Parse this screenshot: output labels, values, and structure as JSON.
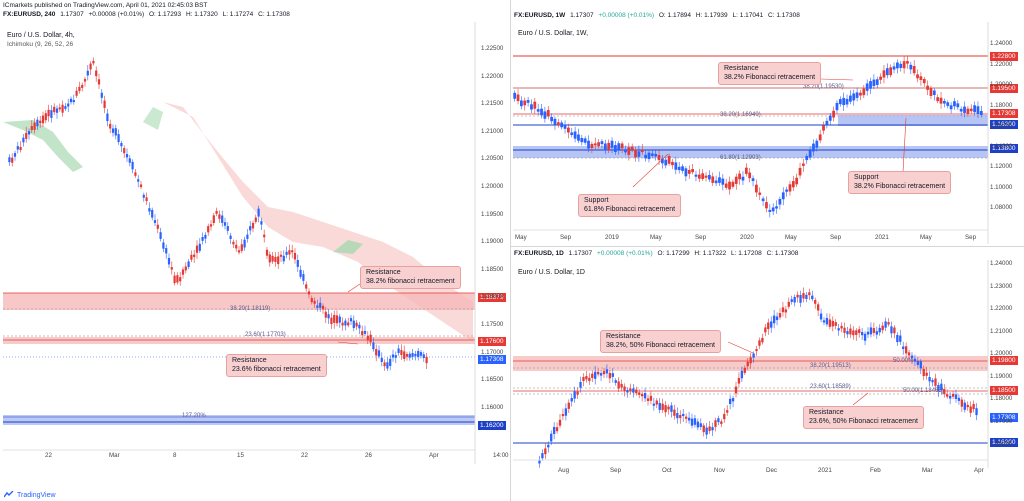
{
  "header": {
    "line1": "ICmarkets published on TradingView.com, April 01, 2021 02:45:03 BST",
    "symbol": "FX:EURUSD, 240",
    "quote": [
      "1.17307",
      "+0.00008 (+0.01%)",
      "O: 1.17293",
      "H: 1.17320",
      "L: 1.17274",
      "C: 1.17308"
    ]
  },
  "left": {
    "title": "Euro / U.S. Dollar, 4h,",
    "indicator": "Ichimoku (9, 26, 52, 26",
    "yticks": [
      "1.22500",
      "1.22000",
      "1.21500",
      "1.21000",
      "1.20500",
      "1.20000",
      "1.19500",
      "1.19000",
      "1.18500",
      "1.18000",
      "1.17500",
      "1.17000",
      "1.16500",
      "1.16000"
    ],
    "xticks": [
      "22",
      "Mar",
      "8",
      "15",
      "22",
      "26",
      "Apr",
      "14:00"
    ],
    "levels": {
      "fib382": "38.20(1.18119)",
      "fib236": "23.60(1.17703)",
      "fib1272": "127.20%"
    },
    "annotations": {
      "res382": [
        "Resistance",
        "38.2% fibonacci retracement"
      ],
      "res236": [
        "Resistance",
        "23.6% fibonacci retracement"
      ]
    },
    "price_tags": {
      "r1": "1.18379",
      "r2": "1.17600",
      "cur": "1.17308",
      "s1": "1.16200"
    }
  },
  "weekly": {
    "header": "FX:EURUSD, 1W",
    "quote": [
      "1.17307",
      "+0.00008 (+0.01%)",
      "O: 1.17894",
      "H: 1.17939",
      "L: 1.17041",
      "C: 1.17308"
    ],
    "title": "Euro / U.S. Dollar, 1W,",
    "yticks": [
      "1.24000",
      "1.22000",
      "1.20000",
      "1.18000",
      "1.16000",
      "1.14000",
      "1.12000",
      "1.10000",
      "1.08000"
    ],
    "xticks": [
      "May",
      "Sep",
      "2019",
      "May",
      "Sep",
      "2020",
      "May",
      "Sep",
      "2021",
      "May",
      "Sep"
    ],
    "levels": {
      "fib382a": "38.20(1.19530)",
      "fib382b": "38.20(1.16949)",
      "fib618": "61.80(1.12903)"
    },
    "annotations": {
      "res": [
        "Resistance",
        "38.2% Fibonacci retracement"
      ],
      "sup618": [
        "Support",
        "61.8% Fibonacci retracement"
      ],
      "sup382": [
        "Support",
        "38.2% Fibonacci retracement"
      ]
    },
    "price_tags": {
      "r1": "1.22800",
      "r2": "1.19500",
      "cur": "1.17308",
      "s1": "1.16200",
      "s2": "1.13800"
    }
  },
  "daily": {
    "header": "FX:EURUSD, 1D",
    "quote": [
      "1.17307",
      "+0.00008 (+0.01%)",
      "O: 1.17299",
      "H: 1.17322",
      "L: 1.17208",
      "C: 1.17308"
    ],
    "title": "Euro / U.S. Dollar, 1D",
    "yticks": [
      "1.24000",
      "1.23000",
      "1.22000",
      "1.21000",
      "1.20000",
      "1.19000",
      "1.18000",
      "1.17000",
      "1.16000"
    ],
    "xticks": [
      "Aug",
      "Sep",
      "Oct",
      "Nov",
      "Dec",
      "2021",
      "Feb",
      "Mar",
      "Apr"
    ],
    "levels": {
      "fib382": "38.20(1.19513)",
      "p50a": "50.00%",
      "fib236": "23.60(1.18589)",
      "p50b": "50.00(1.18465)"
    },
    "annotations": {
      "res1": [
        "Resistance",
        "38.2%, 50% Fibonacci retracement"
      ],
      "res2": [
        "Resistance",
        "23.6%, 50% Fibonacci retracement"
      ]
    },
    "price_tags": {
      "r1": "1.19800",
      "r2": "1.18500",
      "cur": "1.17308",
      "s1": "1.16200"
    }
  },
  "footer": {
    "brand": "TradingView"
  },
  "colors": {
    "up": "#2962ff",
    "down": "#e53935",
    "resistance_zone": "#f5b5b5",
    "support_zone": "#9fb2f2",
    "cloud_green": "#a8d8b0",
    "cloud_red": "#f8c9c9"
  }
}
